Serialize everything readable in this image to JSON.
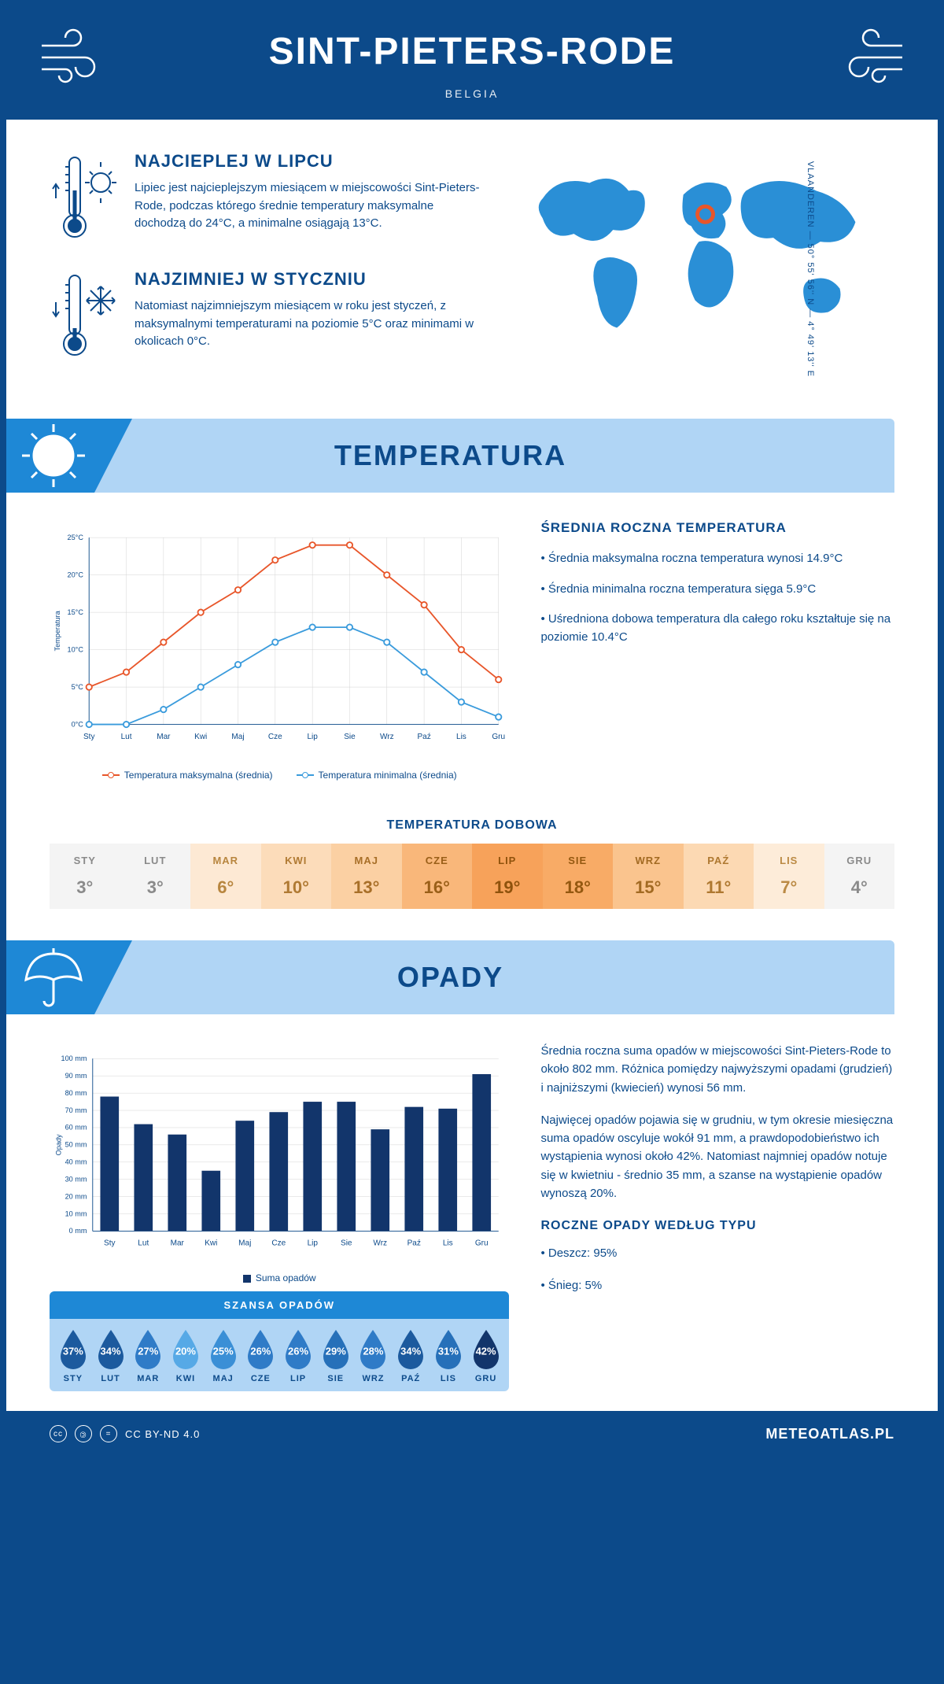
{
  "header": {
    "title": "SINT-PIETERS-RODE",
    "country": "BELGIA"
  },
  "coords": "50° 55' 56'' N — 4° 49' 13'' E",
  "region": "VLAANDEREN — ",
  "facts": {
    "hot": {
      "title": "NAJCIEPLEJ W LIPCU",
      "text": "Lipiec jest najcieplejszym miesiącem w miejscowości Sint-Pieters-Rode, podczas którego średnie temperatury maksymalne dochodzą do 24°C, a minimalne osiągają 13°C."
    },
    "cold": {
      "title": "NAJZIMNIEJ W STYCZNIU",
      "text": "Natomiast najzimniejszym miesiącem w roku jest styczeń, z maksymalnymi temperaturami na poziomie 5°C oraz minimami w okolicach 0°C."
    }
  },
  "temp_section": {
    "title": "TEMPERATURA",
    "avg_title": "ŚREDNIA ROCZNA TEMPERATURA",
    "bullets": [
      "• Średnia maksymalna roczna temperatura wynosi 14.9°C",
      "• Średnia minimalna roczna temperatura sięga 5.9°C",
      "• Uśredniona dobowa temperatura dla całego roku kształtuje się na poziomie 10.4°C"
    ],
    "chart": {
      "type": "line",
      "months": [
        "Sty",
        "Lut",
        "Mar",
        "Kwi",
        "Maj",
        "Cze",
        "Lip",
        "Sie",
        "Wrz",
        "Paź",
        "Lis",
        "Gru"
      ],
      "max": [
        5,
        7,
        11,
        15,
        18,
        22,
        24,
        24,
        20,
        16,
        10,
        6
      ],
      "min": [
        0,
        0,
        2,
        5,
        8,
        11,
        13,
        13,
        11,
        7,
        3,
        1
      ],
      "max_color": "#e8562a",
      "min_color": "#3a9bdc",
      "ylabel": "Temperatura",
      "ylim": [
        0,
        25
      ],
      "ytick_step": 5,
      "legend_max": "Temperatura maksymalna (średnia)",
      "legend_min": "Temperatura minimalna (średnia)",
      "grid_color": "#d0d0d0",
      "background": "#ffffff"
    },
    "daily_title": "TEMPERATURA DOBOWA",
    "daily": {
      "months": [
        "STY",
        "LUT",
        "MAR",
        "KWI",
        "MAJ",
        "CZE",
        "LIP",
        "SIE",
        "WRZ",
        "PAŹ",
        "LIS",
        "GRU"
      ],
      "values": [
        "3°",
        "3°",
        "6°",
        "10°",
        "13°",
        "16°",
        "19°",
        "18°",
        "15°",
        "11°",
        "7°",
        "4°"
      ],
      "bg_colors": [
        "#f4f4f4",
        "#f4f4f4",
        "#fde9d4",
        "#fcdcba",
        "#fbd0a3",
        "#f9b77a",
        "#f7a25a",
        "#f8ab66",
        "#fac48e",
        "#fcd9b3",
        "#fdecd9",
        "#f4f4f4"
      ],
      "txt_colors": [
        "#8a8a8a",
        "#8a8a8a",
        "#b8863f",
        "#b07a33",
        "#a86f28",
        "#9a5f18",
        "#8f520c",
        "#945810",
        "#a26a22",
        "#ae7830",
        "#bb8a44",
        "#8a8a8a"
      ]
    }
  },
  "precip_section": {
    "title": "OPADY",
    "text1": "Średnia roczna suma opadów w miejscowości Sint-Pieters-Rode to około 802 mm. Różnica pomiędzy najwyższymi opadami (grudzień) i najniższymi (kwiecień) wynosi 56 mm.",
    "text2": "Najwięcej opadów pojawia się w grudniu, w tym okresie miesięczna suma opadów oscyluje wokół 91 mm, a prawdopodobieństwo ich wystąpienia wynosi około 42%. Natomiast najmniej opadów notuje się w kwietniu - średnio 35 mm, a szanse na wystąpienie opadów wynoszą 20%.",
    "type_title": "ROCZNE OPADY WEDŁUG TYPU",
    "type_bullets": [
      "• Deszcz: 95%",
      "• Śnieg: 5%"
    ],
    "chart": {
      "type": "bar",
      "months": [
        "Sty",
        "Lut",
        "Mar",
        "Kwi",
        "Maj",
        "Cze",
        "Lip",
        "Sie",
        "Wrz",
        "Paź",
        "Lis",
        "Gru"
      ],
      "values": [
        78,
        62,
        56,
        35,
        64,
        69,
        75,
        75,
        59,
        72,
        71,
        91
      ],
      "bar_color": "#12356b",
      "ylabel": "Opady",
      "ylim": [
        0,
        100
      ],
      "ytick_step": 10,
      "unit": "mm",
      "legend": "Suma opadów",
      "grid_color": "#d0d0d0"
    },
    "chance": {
      "title": "SZANSA OPADÓW",
      "months": [
        "STY",
        "LUT",
        "MAR",
        "KWI",
        "MAJ",
        "CZE",
        "LIP",
        "SIE",
        "WRZ",
        "PAŹ",
        "LIS",
        "GRU"
      ],
      "values": [
        "37%",
        "34%",
        "27%",
        "20%",
        "25%",
        "26%",
        "26%",
        "29%",
        "28%",
        "34%",
        "31%",
        "42%"
      ],
      "colors": [
        "#1c5a9e",
        "#1c5a9e",
        "#2f7bc7",
        "#56a9e6",
        "#3a8fd6",
        "#2f7bc7",
        "#2f7bc7",
        "#2670b9",
        "#2f7bc7",
        "#1c5a9e",
        "#2670b9",
        "#12356b"
      ]
    }
  },
  "footer": {
    "license": "CC BY-ND 4.0",
    "site": "METEOATLAS.PL"
  }
}
